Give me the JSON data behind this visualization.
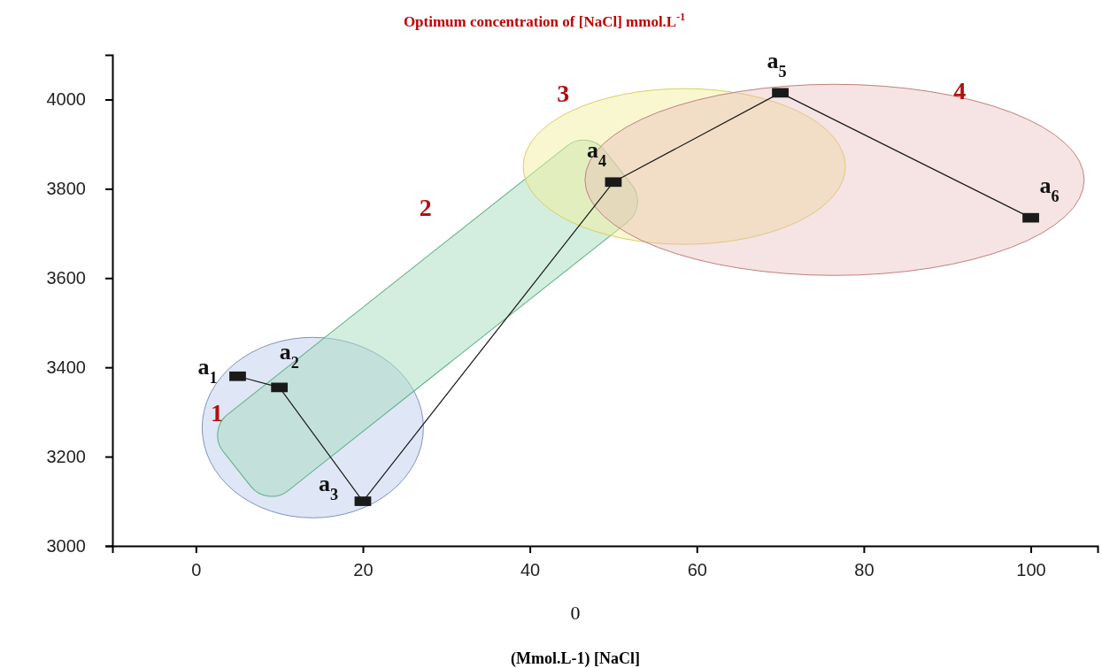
{
  "chart_data": {
    "type": "line",
    "title": "Optimum concentration of [NaCl] mmol.L$^{-1}$",
    "xlabel": "(Mmol.L-1) [NaCl]",
    "x": [
      5,
      10,
      20,
      50,
      70,
      100
    ],
    "series": [
      {
        "color": "#1a1a1a",
        "values": [
          3380,
          3355,
          3100,
          3815,
          4015,
          3735
        ]
      }
    ],
    "marker": "square",
    "line_style": "solid",
    "grid": false,
    "xlim": [
      -10,
      108
    ],
    "xticks": [
      0,
      20,
      40,
      60,
      80,
      100
    ],
    "ylim": [
      3000,
      4100
    ],
    "yticks": [
      3000,
      3200,
      3400,
      3600,
      3800,
      4000
    ],
    "annotations": [
      "0",
      {
        "text": "a$_{1}$",
        "x": 5,
        "y": 3380
      },
      {
        "text": "a$_{2}$",
        "x": 10,
        "y": 3355
      },
      {
        "text": "a$_{3}$",
        "x": 20,
        "y": 3100
      },
      {
        "text": "a$_{4}$",
        "x": 50,
        "y": 3815
      },
      {
        "text": "a$_{5}$",
        "x": 70,
        "y": 4015
      },
      {
        "text": "a$_{6}$",
        "x": 100,
        "y": 3735
      },
      "1",
      "2",
      "3",
      "4"
    ]
  }
}
